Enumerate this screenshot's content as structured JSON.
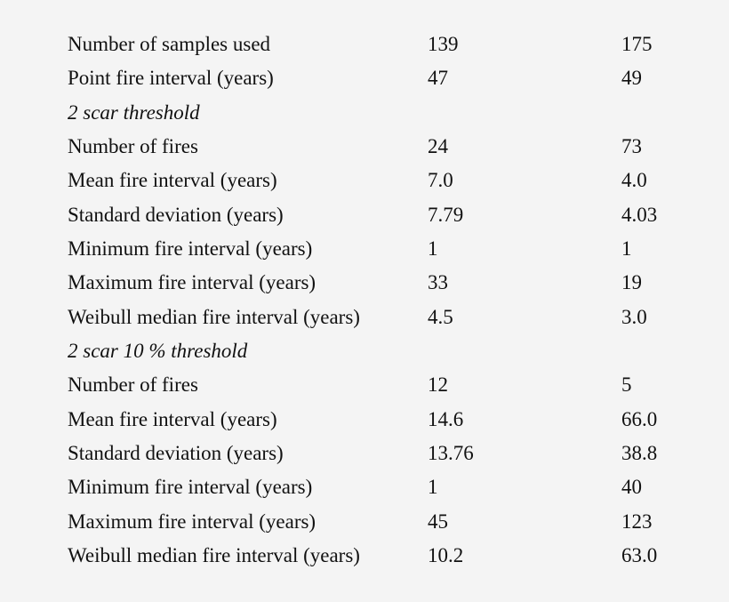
{
  "table": {
    "rows": [
      {
        "type": "data",
        "label": "Number of samples used",
        "v1": "139",
        "v2": "175"
      },
      {
        "type": "data",
        "label": "Point fire interval (years)",
        "v1": "47",
        "v2": "49"
      },
      {
        "type": "section",
        "label": "2 scar threshold",
        "v1": "",
        "v2": ""
      },
      {
        "type": "data",
        "label": "Number of fires",
        "v1": "24",
        "v2": "73"
      },
      {
        "type": "data",
        "label": "Mean fire interval (years)",
        "v1": "7.0",
        "v2": "4.0"
      },
      {
        "type": "data",
        "label": "Standard deviation (years)",
        "v1": "7.79",
        "v2": "4.03"
      },
      {
        "type": "data",
        "label": "Minimum fire interval (years)",
        "v1": "1",
        "v2": "1"
      },
      {
        "type": "data",
        "label": "Maximum fire interval (years)",
        "v1": "33",
        "v2": "19"
      },
      {
        "type": "data",
        "label": "Weibull median fire interval (years)",
        "v1": "4.5",
        "v2": "3.0"
      },
      {
        "type": "section",
        "label": "2 scar 10 % threshold",
        "v1": "",
        "v2": ""
      },
      {
        "type": "data",
        "label": "Number of fires",
        "v1": "12",
        "v2": "5"
      },
      {
        "type": "data",
        "label": "Mean fire interval (years)",
        "v1": "14.6",
        "v2": "66.0"
      },
      {
        "type": "data",
        "label": "Standard deviation (years)",
        "v1": "13.76",
        "v2": "38.8"
      },
      {
        "type": "data",
        "label": "Minimum fire interval (years)",
        "v1": "1",
        "v2": "40"
      },
      {
        "type": "data",
        "label": "Maximum fire interval (years)",
        "v1": "45",
        "v2": "123"
      },
      {
        "type": "data",
        "label": "Weibull median fire interval (years)",
        "v1": "10.2",
        "v2": "63.0"
      }
    ]
  },
  "colors": {
    "background": "#f4f4f4",
    "text": "#111111"
  }
}
